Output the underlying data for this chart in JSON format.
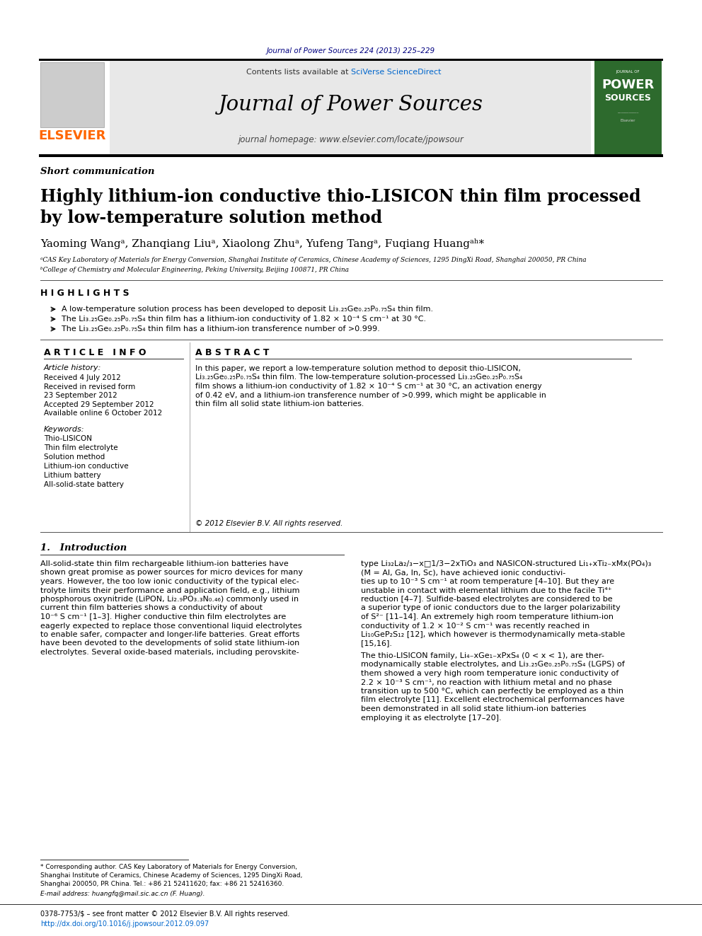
{
  "page_bg": "#ffffff",
  "top_journal_ref": "Journal of Power Sources 224 (2013) 225–229",
  "top_journal_ref_color": "#000080",
  "header_bg": "#e8e8e8",
  "header_title": "Journal of Power Sources",
  "header_subtitle": "journal homepage: www.elsevier.com/locate/jpowsour",
  "header_contents": "Contents lists available at ",
  "header_sciverse": "SciVerse ScienceDirect",
  "header_sciverse_color": "#0066cc",
  "elsevier_color": "#FF6600",
  "section_label": "Short communication",
  "article_title_line1": "Highly lithium-ion conductive thio-LISICON thin film processed",
  "article_title_line2": "by low-temperature solution method",
  "authors": "Yaoming Wangᵃ, Zhanqiang Liuᵃ, Xiaolong Zhuᵃ, Yufeng Tangᵃ, Fuqiang Huangᵃʰ*",
  "affil_a": "ᵃCAS Key Laboratory of Materials for Energy Conversion, Shanghai Institute of Ceramics, Chinese Academy of Sciences, 1295 DingXi Road, Shanghai 200050, PR China",
  "affil_b": "ᵇCollege of Chemistry and Molecular Engineering, Peking University, Beijing 100871, PR China",
  "highlights_header": "H I G H L I G H T S",
  "highlight1": "A low-temperature solution process has been developed to deposit Li₃.₂₅Ge₀.₂₅P₀.₇₅S₄ thin film.",
  "highlight2": "The Li₃.₂₅Ge₀.₂₅P₀.₇₅S₄ thin film has a lithium-ion conductivity of 1.82 × 10⁻⁴ S cm⁻¹ at 30 °C.",
  "highlight3": "The Li₃.₂₅Ge₀.₂₅P₀.₇₅S₄ thin film has a lithium-ion transference number of >0.999.",
  "article_info_header": "A R T I C L E   I N F O",
  "article_history_header": "Article history:",
  "received": "Received 4 July 2012",
  "received_revised1": "Received in revised form",
  "received_revised2": "23 September 2012",
  "accepted": "Accepted 29 September 2012",
  "available": "Available online 6 October 2012",
  "keywords_header": "Keywords:",
  "keywords": [
    "Thio-LISICON",
    "Thin film electrolyte",
    "Solution method",
    "Lithium-ion conductive",
    "Lithium battery",
    "All-solid-state battery"
  ],
  "abstract_header": "A B S T R A C T",
  "abstract_text": "In this paper, we report a low-temperature solution method to deposit thio-LISICON, Li₃.₂₅Ge₀.₂₅P₀.₇₅S₄ thin film. The low-temperature solution-processed Li₃.₂₅Ge₀.₂₅P₀.₇₅S₄ film shows a lithium-ion conductivity of 1.82 × 10⁻⁴ S cm⁻¹ at 30 °C, an activation energy of 0.42 eV, and a lithium-ion transference number of >0.999, which might be applicable in thin film all solid state lithium-ion batteries.",
  "abstract_copyright": "© 2012 Elsevier B.V. All rights reserved.",
  "intro_header": "1.   Introduction",
  "footnote_star": "* Corresponding author. CAS Key Laboratory of Materials for Energy Conversion,",
  "footnote_star2": "Shanghai Institute of Ceramics, Chinese Academy of Sciences, 1295 DingXi Road,",
  "footnote_star3": "Shanghai 200050, PR China. Tel.: +86 21 52411620; fax: +86 21 52416360.",
  "footnote_email": "E-mail address: huangfq@mail.sic.ac.cn (F. Huang).",
  "footer1": "0378-7753/$ – see front matter © 2012 Elsevier B.V. All rights reserved.",
  "footer2": "http://dx.doi.org/10.1016/j.jpowsour.2012.09.097"
}
